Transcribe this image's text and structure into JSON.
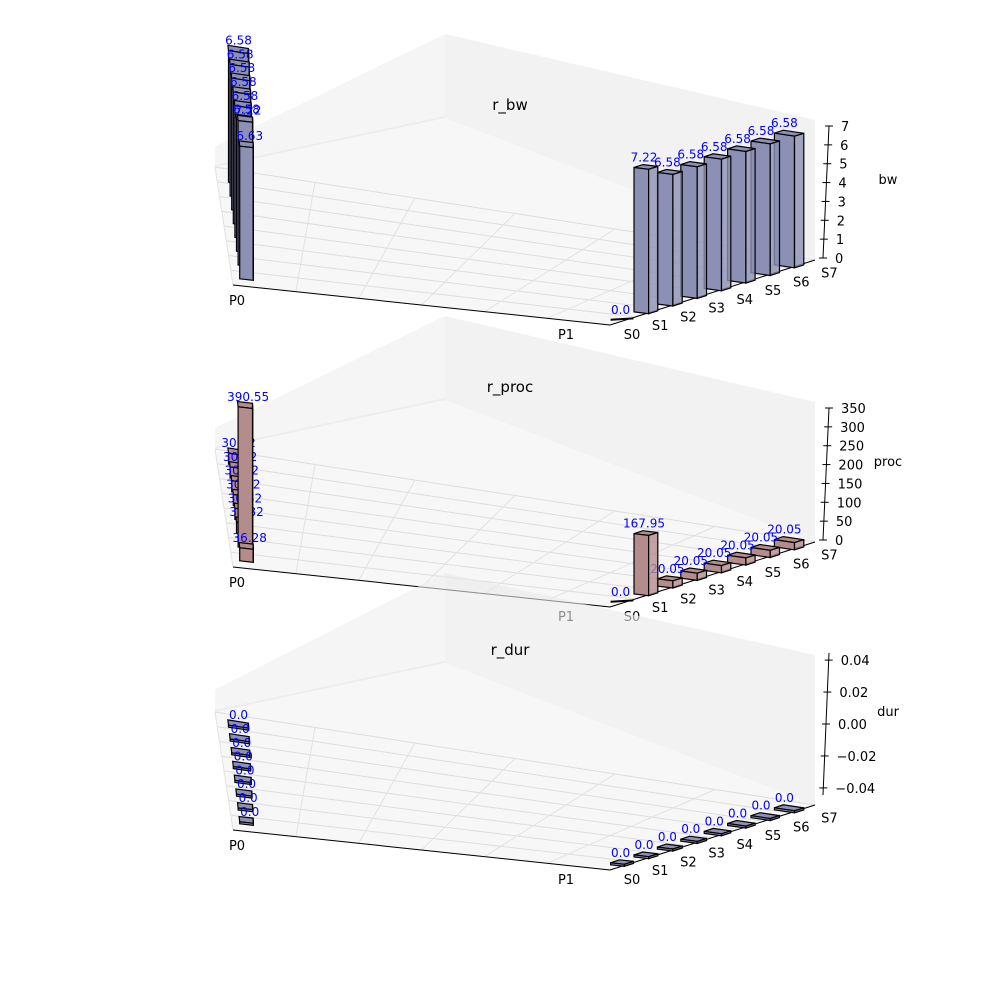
{
  "chart_data": [
    {
      "type": "bar3d",
      "title": "r_bw",
      "zlabel": "bw",
      "x_categories": [
        "P0",
        "P1"
      ],
      "y_categories": [
        "S0",
        "S1",
        "S2",
        "S3",
        "S4",
        "S5",
        "S6",
        "S7"
      ],
      "zlim": [
        0,
        7
      ],
      "zticks": [
        "0",
        "1",
        "2",
        "3",
        "4",
        "5",
        "6",
        "7"
      ],
      "bar_color": "#8c90b4",
      "series": [
        {
          "name": "P0",
          "values": [
            6.63,
            7.22,
            6.58,
            6.58,
            6.58,
            6.58,
            6.58,
            6.58
          ],
          "labels": [
            "6.63",
            "7.22",
            "6.58",
            "6.58",
            "6.58",
            "6.58",
            "6.58",
            "6.58"
          ]
        },
        {
          "name": "P1",
          "values": [
            0.0,
            7.22,
            6.58,
            6.58,
            6.58,
            6.58,
            6.58,
            6.58
          ],
          "labels": [
            "0.0",
            "7.22",
            "6.58",
            "6.58",
            "6.58",
            "6.58",
            "6.58",
            "6.58"
          ]
        }
      ]
    },
    {
      "type": "bar3d",
      "title": "r_proc",
      "zlabel": "proc",
      "x_categories": [
        "P0",
        "P1"
      ],
      "y_categories": [
        "S0",
        "S1",
        "S2",
        "S3",
        "S4",
        "S5",
        "S6",
        "S7"
      ],
      "zlim": [
        0,
        390
      ],
      "zticks": [
        "0",
        "50",
        "100",
        "150",
        "200",
        "250",
        "300",
        "350"
      ],
      "bar_color": "#b48c8c",
      "series": [
        {
          "name": "P0",
          "values": [
            36.28,
            390.55,
            30.82,
            30.82,
            30.82,
            30.82,
            30.82,
            30.82
          ],
          "labels": [
            "36.28",
            "390.55",
            "30.82",
            "30.82",
            "30.82",
            "30.82",
            "30.82",
            "30.82"
          ]
        },
        {
          "name": "P1",
          "values": [
            0.0,
            167.95,
            20.05,
            20.05,
            20.05,
            20.05,
            20.05,
            20.05
          ],
          "labels": [
            "0.0",
            "167.95",
            "20.05",
            "20.05",
            "20.05",
            "20.05",
            "20.05",
            "20.05"
          ]
        }
      ]
    },
    {
      "type": "bar3d",
      "title": "r_dur",
      "zlabel": "dur",
      "x_categories": [
        "P0",
        "P1"
      ],
      "y_categories": [
        "S0",
        "S1",
        "S2",
        "S3",
        "S4",
        "S5",
        "S6",
        "S7"
      ],
      "zlim": [
        -0.05,
        0.05
      ],
      "zticks": [
        "−0.04",
        "−0.02",
        "0.00",
        "0.02",
        "0.04"
      ],
      "bar_color": "#8c90b4",
      "series": [
        {
          "name": "P0",
          "values": [
            0.0,
            0.0,
            0.0,
            0.0,
            0.0,
            0.0,
            0.0,
            0.0
          ],
          "labels": [
            "0.0",
            "0.0",
            "0.0",
            "0.0",
            "0.0",
            "0.0",
            "0.0",
            "0.0"
          ]
        },
        {
          "name": "P1",
          "values": [
            0.0,
            0.0,
            0.0,
            0.0,
            0.0,
            0.0,
            0.0,
            0.0
          ],
          "labels": [
            "0.0",
            "0.0",
            "0.0",
            "0.0",
            "0.0",
            "0.0",
            "0.0",
            "0.0"
          ]
        }
      ]
    }
  ]
}
